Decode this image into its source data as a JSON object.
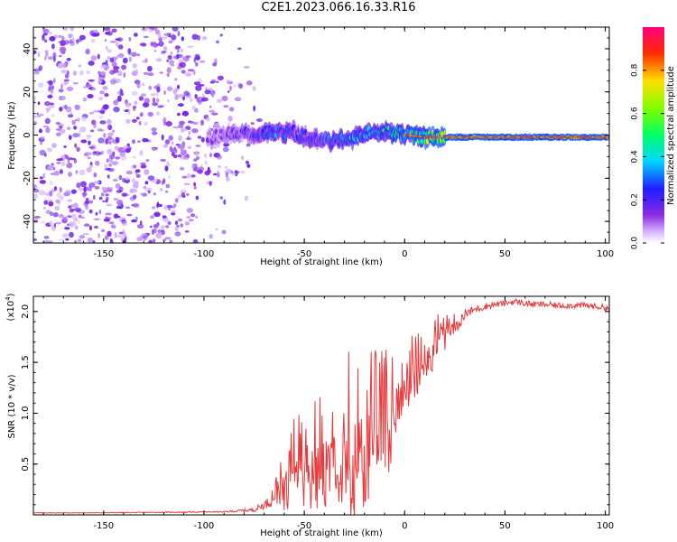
{
  "title": "C2E1.2023.066.16.33.R16",
  "colors": {
    "accent": "#e8383a",
    "axis": "#000000"
  },
  "chart_data": [
    {
      "type": "heatmap",
      "xlabel": "Height of straight line (km)",
      "ylabel": "Frequency (Hz)",
      "xlim": [
        -185,
        102
      ],
      "ylim": [
        -50,
        50
      ],
      "x_ticks": [
        -150,
        -100,
        -50,
        0,
        50,
        100
      ],
      "y_ticks": [
        -40,
        -20,
        0,
        20,
        40
      ],
      "colorbar": {
        "label": "Normalized spectral amplitude",
        "range": [
          0,
          1
        ],
        "ticks": [
          "0.0",
          "0.2",
          "0.4",
          "0.6",
          "0.8"
        ],
        "tick_values": [
          0.0,
          0.2,
          0.4,
          0.6,
          0.8
        ],
        "colormap": "rainbow (white, purple, blue, cyan, green, yellow, red, magenta)"
      },
      "signal_track": {
        "x": [
          -95,
          -85,
          -75,
          -65,
          -55,
          -45,
          -35,
          -25,
          -15,
          -5,
          0,
          10,
          25,
          50,
          75,
          100
        ],
        "frequency": [
          -1,
          1,
          0,
          2,
          1,
          -2,
          -3,
          -1,
          2,
          1,
          0,
          -1,
          -1,
          -1,
          -1,
          -1
        ],
        "amplitude": [
          0.15,
          0.2,
          0.25,
          0.35,
          0.3,
          0.3,
          0.35,
          0.4,
          0.45,
          0.55,
          0.6,
          0.7,
          0.8,
          0.85,
          0.85,
          0.85
        ]
      },
      "noise_region_x": [
        -185,
        -100
      ]
    },
    {
      "type": "line",
      "xlabel": "Height of straight line (km)",
      "ylabel": "SNR (10 * v/v)",
      "multiplier_label": "(x10",
      "multiplier_exp": "4",
      "xlim": [
        -185,
        102
      ],
      "ylim": [
        0,
        2.15
      ],
      "x_ticks": [
        -150,
        -100,
        -50,
        0,
        50,
        100
      ],
      "y_ticks": [
        "0.5",
        "1.0",
        "1.5",
        "2.0"
      ],
      "y_tick_values": [
        0.5,
        1.0,
        1.5,
        2.0
      ],
      "series": [
        {
          "color": "#e8383a",
          "x": [
            -185,
            -160,
            -120,
            -90,
            -75,
            -68,
            -62,
            -58,
            -54,
            -50,
            -46,
            -42,
            -38,
            -34,
            -31,
            -28,
            -25,
            -22,
            -18,
            -14,
            -10,
            -6,
            -3,
            0,
            3,
            6,
            10,
            14,
            18,
            22,
            26,
            30,
            35,
            40,
            45,
            50,
            55,
            60,
            65,
            70,
            75,
            80,
            85,
            90,
            95,
            100,
            102
          ],
          "y": [
            0.02,
            0.02,
            0.025,
            0.03,
            0.05,
            0.12,
            0.3,
            0.5,
            0.55,
            0.6,
            0.65,
            0.7,
            0.75,
            0.8,
            0.9,
            1.0,
            0.9,
            1.0,
            0.95,
            1.0,
            1.05,
            1.1,
            1.25,
            1.4,
            1.45,
            1.5,
            1.6,
            1.7,
            1.8,
            1.85,
            1.9,
            1.97,
            2.02,
            2.05,
            2.07,
            2.08,
            2.1,
            2.08,
            2.07,
            2.07,
            2.06,
            2.06,
            2.06,
            2.06,
            2.05,
            2.04,
            2.03
          ],
          "noise_amplitude": [
            0.003,
            0.003,
            0.004,
            0.005,
            0.02,
            0.05,
            0.2,
            0.45,
            0.45,
            0.45,
            0.5,
            0.55,
            0.6,
            0.6,
            0.7,
            0.9,
            0.8,
            0.9,
            0.7,
            0.65,
            0.6,
            0.55,
            0.45,
            0.4,
            0.35,
            0.3,
            0.28,
            0.25,
            0.2,
            0.15,
            0.1,
            0.06,
            0.04,
            0.035,
            0.03,
            0.03,
            0.03,
            0.03,
            0.03,
            0.03,
            0.03,
            0.03,
            0.03,
            0.03,
            0.03,
            0.03,
            0.03
          ]
        }
      ]
    }
  ]
}
